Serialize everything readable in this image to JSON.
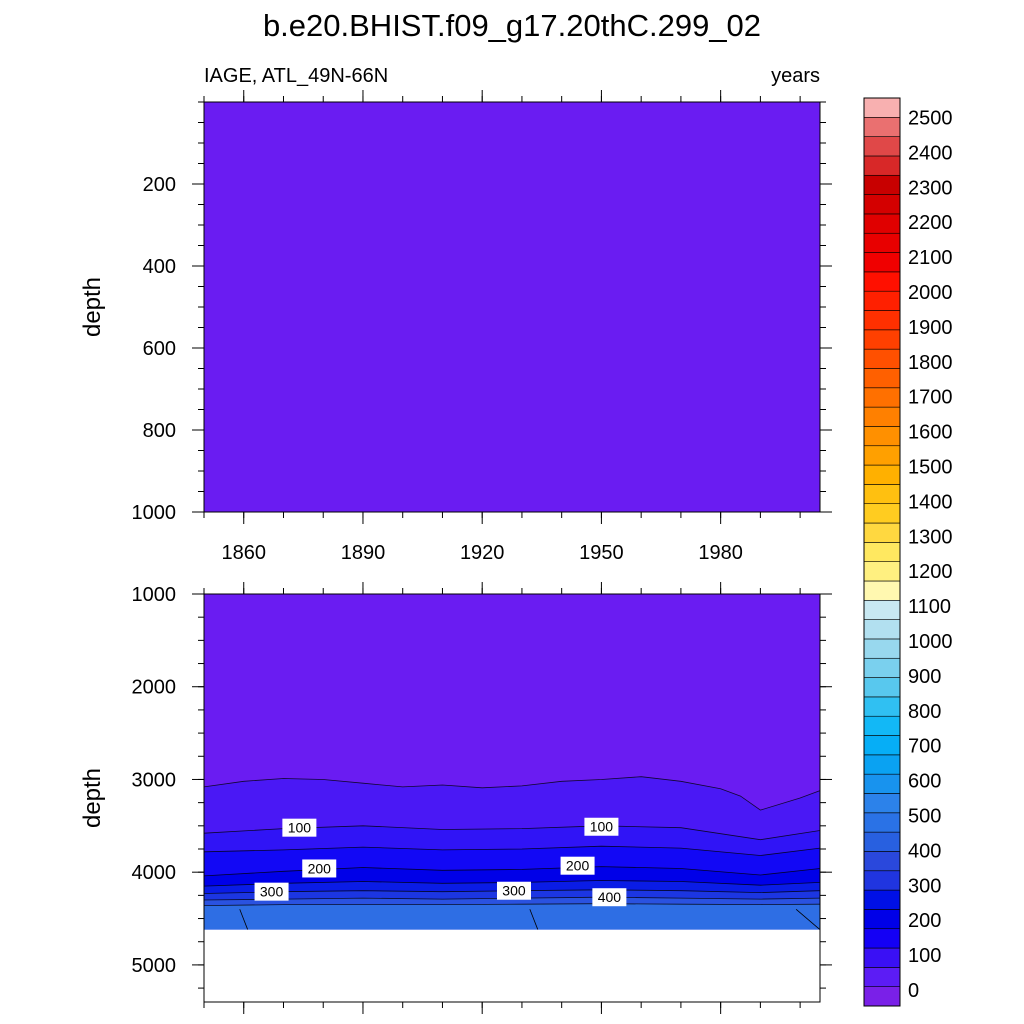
{
  "chart_data": {
    "type": "contour",
    "title": "b.e20.BHIST.f09_g17.20thC.299_02",
    "subtitle_left": "IAGE, ATL_49N-66N",
    "subtitle_right": "years",
    "xlim": [
      1850,
      2005
    ],
    "xticks": [
      "1860",
      "1890",
      "1920",
      "1950",
      "1980"
    ],
    "xtick_values": [
      1860,
      1890,
      1920,
      1950,
      1980
    ],
    "upper_panel": {
      "ylabel": "depth",
      "ylim": [
        0,
        1000
      ],
      "yticks": [
        "200",
        "400",
        "600",
        "800",
        "1000"
      ],
      "ytick_values": [
        200,
        400,
        600,
        800,
        1000
      ],
      "fill_value": "0-50"
    },
    "lower_panel": {
      "ylabel": "depth",
      "ylim": [
        1000,
        5400
      ],
      "yticks": [
        "1000",
        "2000",
        "3000",
        "4000",
        "5000"
      ],
      "ytick_values": [
        1000,
        2000,
        3000,
        4000,
        5000
      ],
      "bottom_depth": 4620,
      "contours": [
        {
          "level": 50,
          "years": [
            1850,
            1860,
            1870,
            1880,
            1890,
            1900,
            1910,
            1920,
            1930,
            1940,
            1950,
            1960,
            1970,
            1980,
            1985,
            1990,
            2000,
            2005
          ],
          "depths": [
            3080,
            3020,
            2990,
            3000,
            3040,
            3080,
            3060,
            3090,
            3070,
            3020,
            3000,
            2970,
            3020,
            3100,
            3180,
            3330,
            3200,
            3120
          ]
        },
        {
          "level": 100,
          "years": [
            1850,
            1870,
            1890,
            1910,
            1930,
            1950,
            1970,
            1990,
            2005
          ],
          "depths": [
            3580,
            3530,
            3500,
            3540,
            3530,
            3500,
            3520,
            3650,
            3550
          ]
        },
        {
          "level": 150,
          "years": [
            1850,
            1870,
            1890,
            1910,
            1930,
            1950,
            1970,
            1990,
            2005
          ],
          "depths": [
            3780,
            3760,
            3730,
            3760,
            3750,
            3720,
            3740,
            3820,
            3740
          ]
        },
        {
          "level": 200,
          "years": [
            1850,
            1870,
            1890,
            1910,
            1930,
            1950,
            1970,
            1990,
            2005
          ],
          "depths": [
            4040,
            3990,
            3950,
            3980,
            3970,
            3940,
            3960,
            4030,
            3960
          ]
        },
        {
          "level": 250,
          "years": [
            1850,
            1870,
            1890,
            1910,
            1930,
            1950,
            1970,
            1990,
            2005
          ],
          "depths": [
            4150,
            4120,
            4100,
            4120,
            4110,
            4090,
            4100,
            4140,
            4110
          ]
        },
        {
          "level": 300,
          "years": [
            1850,
            1870,
            1890,
            1910,
            1930,
            1950,
            1970,
            1990,
            2005
          ],
          "depths": [
            4230,
            4210,
            4200,
            4210,
            4200,
            4190,
            4200,
            4220,
            4200
          ]
        },
        {
          "level": 350,
          "years": [
            1850,
            1870,
            1890,
            1910,
            1930,
            1950,
            1970,
            1990,
            2005
          ],
          "depths": [
            4300,
            4290,
            4280,
            4290,
            4280,
            4270,
            4280,
            4290,
            4280
          ]
        },
        {
          "level": 400,
          "years": [
            1850,
            1870,
            1890,
            1910,
            1930,
            1950,
            1970,
            1990,
            2005
          ],
          "depths": [
            4360,
            4350,
            4350,
            4350,
            4345,
            4340,
            4345,
            4350,
            4345
          ]
        }
      ],
      "contour_labels": [
        {
          "text": "100",
          "year": 1874,
          "depth": 3520
        },
        {
          "text": "100",
          "year": 1950,
          "depth": 3510
        },
        {
          "text": "200",
          "year": 1879,
          "depth": 3960
        },
        {
          "text": "200",
          "year": 1944,
          "depth": 3930
        },
        {
          "text": "300",
          "year": 1867,
          "depth": 4210
        },
        {
          "text": "300",
          "year": 1928,
          "depth": 4200
        },
        {
          "text": "400",
          "year": 1952,
          "depth": 4270
        }
      ]
    },
    "colorbar": {
      "labels": [
        "0",
        "100",
        "200",
        "300",
        "400",
        "500",
        "600",
        "700",
        "800",
        "900",
        "1000",
        "1100",
        "1200",
        "1300",
        "1400",
        "1500",
        "1600",
        "1700",
        "1800",
        "1900",
        "2000",
        "2100",
        "2200",
        "2300",
        "2400",
        "2500"
      ],
      "colors": [
        "#7a20e8",
        "#5c1cf5",
        "#3a10f5",
        "#1400f5",
        "#0000e8",
        "#0010e6",
        "#2035e0",
        "#2a48dc",
        "#2860e0",
        "#2a72e6",
        "#2c82ea",
        "#1893ee",
        "#0aa2f2",
        "#06aef6",
        "#12b8f6",
        "#30c0f2",
        "#58c8ee",
        "#7ad0ee",
        "#98d8ee",
        "#b2e0f0",
        "#c8e8f2",
        "#fff8b0",
        "#fff080",
        "#ffe860",
        "#ffd840",
        "#ffcc20",
        "#ffc010",
        "#ffb000",
        "#ffa000",
        "#ff9000",
        "#ff8000",
        "#ff7000",
        "#ff6000",
        "#ff5000",
        "#ff4000",
        "#ff3000",
        "#ff2000",
        "#ff1000",
        "#f00000",
        "#e80000",
        "#e00000",
        "#d40000",
        "#c80000",
        "#d82828",
        "#e04848",
        "#ea7070",
        "#f8b0b0"
      ]
    }
  }
}
